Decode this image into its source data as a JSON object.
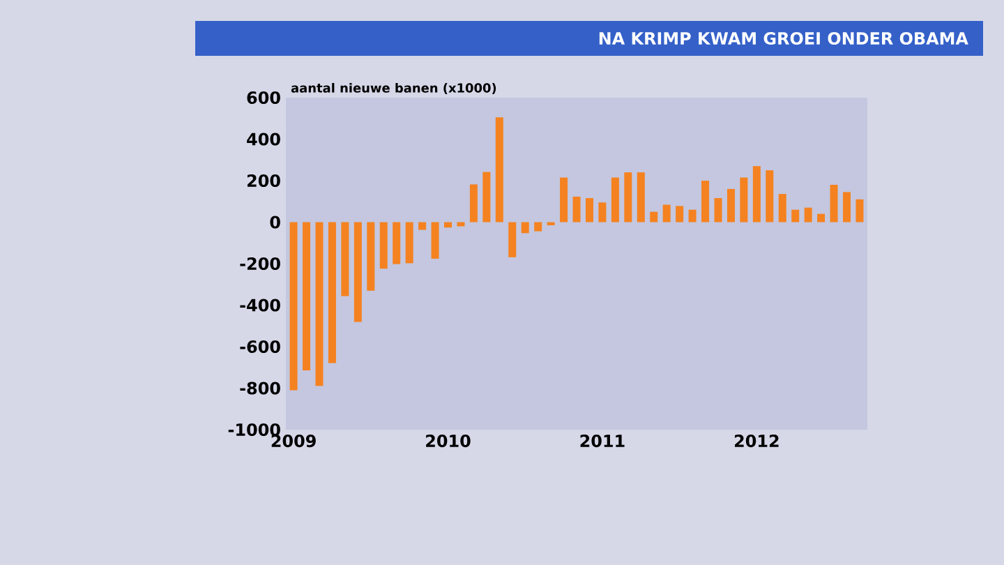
{
  "chart_data": {
    "type": "bar",
    "title": "NA KRIMP KWAM GROEI ONDER OBAMA",
    "ylabel": "aantal nieuwe banen (x1000)",
    "categories": [
      "2009",
      null,
      null,
      null,
      null,
      null,
      null,
      null,
      null,
      null,
      null,
      null,
      "2010",
      null,
      null,
      null,
      null,
      null,
      null,
      null,
      null,
      null,
      null,
      null,
      "2011",
      null,
      null,
      null,
      null,
      null,
      null,
      null,
      null,
      null,
      null,
      null,
      "2012",
      null,
      null,
      null,
      null,
      null,
      null,
      null,
      null
    ],
    "values": [
      -810,
      -714,
      -789,
      -679,
      -356,
      -481,
      -330,
      -224,
      -202,
      -198,
      -37,
      -176,
      -26,
      -20,
      182,
      242,
      505,
      -169,
      -53,
      -44,
      -15,
      215,
      123,
      116,
      95,
      215,
      240,
      240,
      50,
      84,
      78,
      60,
      200,
      116,
      160,
      215,
      270,
      250,
      136,
      60,
      70,
      40,
      180,
      145,
      110
    ],
    "color": "#f58220",
    "ylim": [
      -1000,
      600
    ],
    "yticks": [
      -1000,
      -800,
      -600,
      -400,
      -200,
      0,
      200,
      400,
      600
    ]
  }
}
